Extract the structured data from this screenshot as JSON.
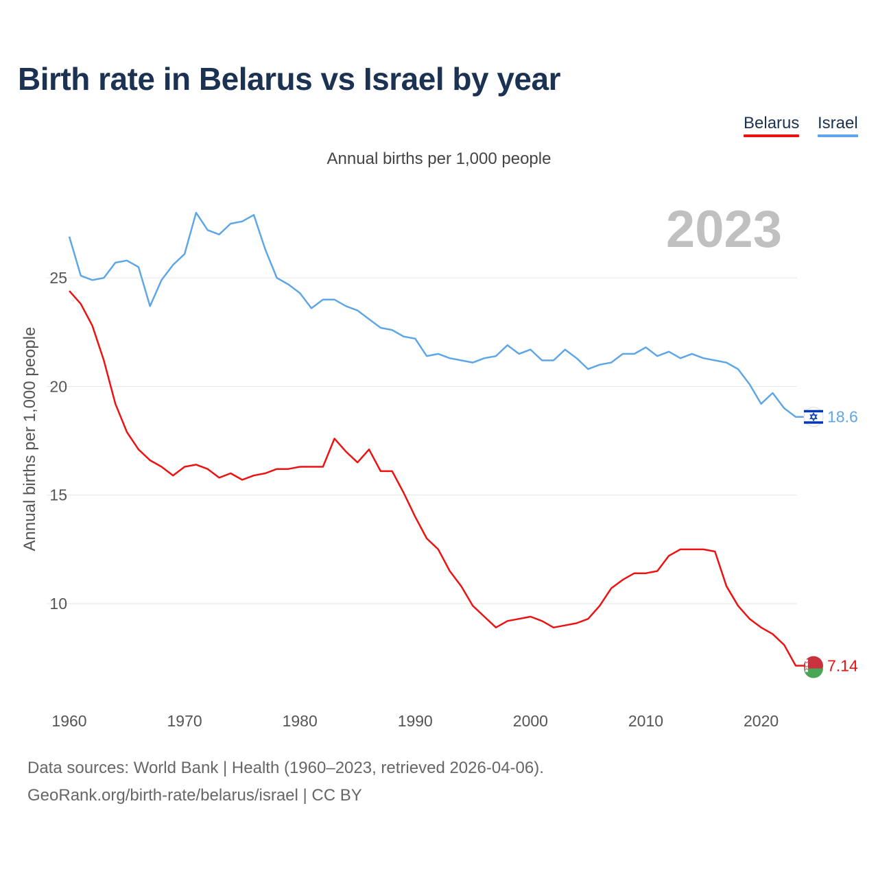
{
  "title": "Birth rate in Belarus vs Israel by year",
  "subtitle": "Annual births per 1,000 people",
  "year_watermark": "2023",
  "footer": {
    "source": "Data sources: World Bank | Health (1960–2023, retrieved 2026-04-06).",
    "credit": "GeoRank.org/birth-rate/belarus/israel | CC BY"
  },
  "colors": {
    "belarus": "#ee1111",
    "israel": "#5ea6e6",
    "title": "#1c3252",
    "grid": "#e6e6e6",
    "axis_text": "#555555",
    "watermark": "#c0c0c0"
  },
  "chart_data": {
    "type": "line",
    "title": "Birth rate in Belarus vs Israel by year",
    "ylabel": "Annual births per 1,000 people",
    "xlabel": "",
    "xlim": [
      1960,
      2023
    ],
    "ylim": [
      6,
      29
    ],
    "y_ticks": [
      10,
      15,
      20,
      25
    ],
    "x_ticks": [
      1960,
      1970,
      1980,
      1990,
      2000,
      2010,
      2020
    ],
    "grid": "horizontal",
    "legend_position": "top-right",
    "x": [
      1960,
      1961,
      1962,
      1963,
      1964,
      1965,
      1966,
      1967,
      1968,
      1969,
      1970,
      1971,
      1972,
      1973,
      1974,
      1975,
      1976,
      1977,
      1978,
      1979,
      1980,
      1981,
      1982,
      1983,
      1984,
      1985,
      1986,
      1987,
      1988,
      1989,
      1990,
      1991,
      1992,
      1993,
      1994,
      1995,
      1996,
      1997,
      1998,
      1999,
      2000,
      2001,
      2002,
      2003,
      2004,
      2005,
      2006,
      2007,
      2008,
      2009,
      2010,
      2011,
      2012,
      2013,
      2014,
      2015,
      2016,
      2017,
      2018,
      2019,
      2020,
      2021,
      2022,
      2023
    ],
    "series": [
      {
        "name": "Belarus",
        "color": "#ee1111",
        "end_label": "7.14",
        "values": [
          24.4,
          23.8,
          22.8,
          21.2,
          19.2,
          17.9,
          17.1,
          16.6,
          16.3,
          15.9,
          16.3,
          16.4,
          16.2,
          15.8,
          16.0,
          15.7,
          15.9,
          16.0,
          16.2,
          16.2,
          16.3,
          16.3,
          16.3,
          17.6,
          17.0,
          16.5,
          17.1,
          16.1,
          16.1,
          15.1,
          14.0,
          13.0,
          12.5,
          11.5,
          10.8,
          9.9,
          9.4,
          8.9,
          9.2,
          9.3,
          9.4,
          9.2,
          8.9,
          9.0,
          9.1,
          9.3,
          9.9,
          10.7,
          11.1,
          11.4,
          11.4,
          11.5,
          12.2,
          12.5,
          12.5,
          12.5,
          12.4,
          10.8,
          9.9,
          9.3,
          8.9,
          8.6,
          8.1,
          7.14
        ]
      },
      {
        "name": "Israel",
        "color": "#5ea6e6",
        "end_label": "18.6",
        "values": [
          26.9,
          25.1,
          24.9,
          25.0,
          25.7,
          25.8,
          25.5,
          23.7,
          24.9,
          25.6,
          26.1,
          28.0,
          27.2,
          27.0,
          27.5,
          27.6,
          27.9,
          26.3,
          25.0,
          24.7,
          24.3,
          23.6,
          24.0,
          24.0,
          23.7,
          23.5,
          23.1,
          22.7,
          22.6,
          22.3,
          22.2,
          21.4,
          21.5,
          21.3,
          21.2,
          21.1,
          21.3,
          21.4,
          21.9,
          21.5,
          21.7,
          21.2,
          21.2,
          21.7,
          21.3,
          20.8,
          21.0,
          21.1,
          21.5,
          21.5,
          21.8,
          21.4,
          21.6,
          21.3,
          21.5,
          21.3,
          21.2,
          21.1,
          20.8,
          20.1,
          19.2,
          19.7,
          19.0,
          18.6
        ]
      }
    ]
  }
}
